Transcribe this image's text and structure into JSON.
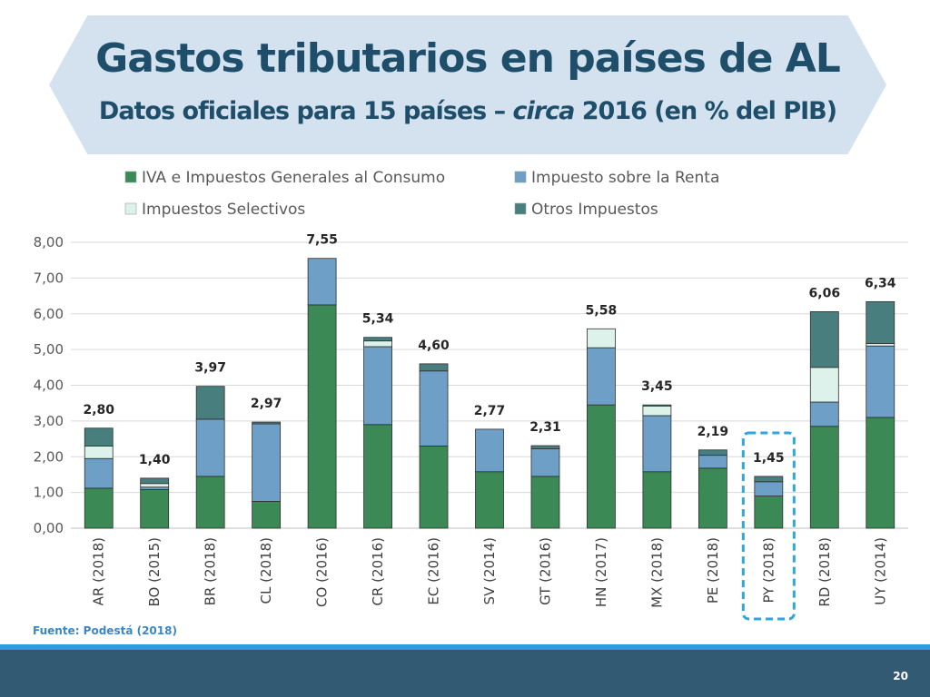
{
  "header": {
    "title": "Gastos tributarios en países de AL",
    "subtitle_pre": "Datos oficiales para 15 países – ",
    "subtitle_em": "circa",
    "subtitle_post": " 2016 (en % del PIB)"
  },
  "footer": {
    "source": "Fuente: Podestá (2018)",
    "page_number": "20"
  },
  "chart_data": {
    "type": "bar",
    "stacked": true,
    "categories": [
      "AR (2018)",
      "BO (2015)",
      "BR (2018)",
      "CL (2018)",
      "CO (2016)",
      "CR (2016)",
      "EC (2016)",
      "SV (2014)",
      "GT (2016)",
      "HN (2017)",
      "MX (2018)",
      "PE (2018)",
      "PY (2018)",
      "RD (2018)",
      "UY (2014)"
    ],
    "series": [
      {
        "name": "IVA e Impuestos Generales al Consumo",
        "color": "#3b8a55",
        "values": [
          1.12,
          1.08,
          1.45,
          0.75,
          6.25,
          2.9,
          2.3,
          1.58,
          1.45,
          3.45,
          1.58,
          1.68,
          0.9,
          2.85,
          3.1
        ]
      },
      {
        "name": "Impuesto sobre la Renta",
        "color": "#6e9fc6",
        "values": [
          0.83,
          0.07,
          1.6,
          2.17,
          1.3,
          2.18,
          2.1,
          1.19,
          0.77,
          1.6,
          1.57,
          0.36,
          0.4,
          0.68,
          2.0
        ]
      },
      {
        "name": "Impuestos Selectivos",
        "color": "#dcf2ea",
        "values": [
          0.35,
          0.1,
          0.0,
          0.0,
          0.0,
          0.16,
          0.0,
          0.0,
          0.0,
          0.53,
          0.27,
          0.0,
          0.0,
          0.97,
          0.07
        ]
      },
      {
        "name": "Otros Impuestos",
        "color": "#487e7e",
        "values": [
          0.5,
          0.15,
          0.92,
          0.05,
          0.0,
          0.1,
          0.2,
          0.0,
          0.09,
          0.0,
          0.03,
          0.15,
          0.15,
          1.56,
          1.17
        ]
      }
    ],
    "totals": [
      "2,80",
      "1,40",
      "3,97",
      "2,97",
      "7,55",
      "5,34",
      "4,60",
      "2,77",
      "2,31",
      "5,58",
      "3,45",
      "2,19",
      "1,45",
      "6,06",
      "6,34"
    ],
    "y_ticks": [
      "0,00",
      "1,00",
      "2,00",
      "3,00",
      "4,00",
      "5,00",
      "6,00",
      "7,00",
      "8,00"
    ],
    "ylim": [
      0,
      8
    ],
    "grid": true,
    "legend_position": "top",
    "highlighted_category": "PY (2018)",
    "highlight_color": "#2ea6e0"
  }
}
